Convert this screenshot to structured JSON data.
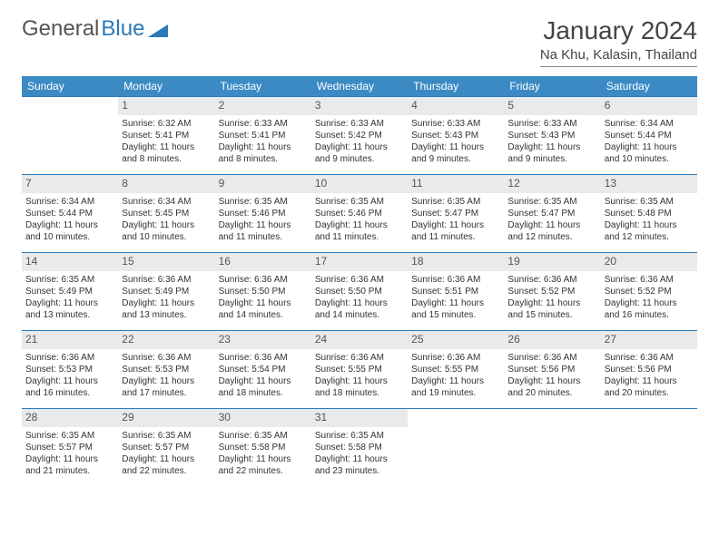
{
  "logo": {
    "text1": "General",
    "text2": "Blue"
  },
  "title": "January 2024",
  "location": "Na Khu, Kalasin, Thailand",
  "colors": {
    "header_bg": "#3b8ac4",
    "header_text": "#ffffff",
    "daynum_bg": "#e8eaec",
    "border": "#2a7ab9",
    "body_text": "#333333"
  },
  "daysOfWeek": [
    "Sunday",
    "Monday",
    "Tuesday",
    "Wednesday",
    "Thursday",
    "Friday",
    "Saturday"
  ],
  "leadingBlanks": 1,
  "days": [
    {
      "n": 1,
      "sunrise": "6:32 AM",
      "sunset": "5:41 PM",
      "daylight": "11 hours and 8 minutes."
    },
    {
      "n": 2,
      "sunrise": "6:33 AM",
      "sunset": "5:41 PM",
      "daylight": "11 hours and 8 minutes."
    },
    {
      "n": 3,
      "sunrise": "6:33 AM",
      "sunset": "5:42 PM",
      "daylight": "11 hours and 9 minutes."
    },
    {
      "n": 4,
      "sunrise": "6:33 AM",
      "sunset": "5:43 PM",
      "daylight": "11 hours and 9 minutes."
    },
    {
      "n": 5,
      "sunrise": "6:33 AM",
      "sunset": "5:43 PM",
      "daylight": "11 hours and 9 minutes."
    },
    {
      "n": 6,
      "sunrise": "6:34 AM",
      "sunset": "5:44 PM",
      "daylight": "11 hours and 10 minutes."
    },
    {
      "n": 7,
      "sunrise": "6:34 AM",
      "sunset": "5:44 PM",
      "daylight": "11 hours and 10 minutes."
    },
    {
      "n": 8,
      "sunrise": "6:34 AM",
      "sunset": "5:45 PM",
      "daylight": "11 hours and 10 minutes."
    },
    {
      "n": 9,
      "sunrise": "6:35 AM",
      "sunset": "5:46 PM",
      "daylight": "11 hours and 11 minutes."
    },
    {
      "n": 10,
      "sunrise": "6:35 AM",
      "sunset": "5:46 PM",
      "daylight": "11 hours and 11 minutes."
    },
    {
      "n": 11,
      "sunrise": "6:35 AM",
      "sunset": "5:47 PM",
      "daylight": "11 hours and 11 minutes."
    },
    {
      "n": 12,
      "sunrise": "6:35 AM",
      "sunset": "5:47 PM",
      "daylight": "11 hours and 12 minutes."
    },
    {
      "n": 13,
      "sunrise": "6:35 AM",
      "sunset": "5:48 PM",
      "daylight": "11 hours and 12 minutes."
    },
    {
      "n": 14,
      "sunrise": "6:35 AM",
      "sunset": "5:49 PM",
      "daylight": "11 hours and 13 minutes."
    },
    {
      "n": 15,
      "sunrise": "6:36 AM",
      "sunset": "5:49 PM",
      "daylight": "11 hours and 13 minutes."
    },
    {
      "n": 16,
      "sunrise": "6:36 AM",
      "sunset": "5:50 PM",
      "daylight": "11 hours and 14 minutes."
    },
    {
      "n": 17,
      "sunrise": "6:36 AM",
      "sunset": "5:50 PM",
      "daylight": "11 hours and 14 minutes."
    },
    {
      "n": 18,
      "sunrise": "6:36 AM",
      "sunset": "5:51 PM",
      "daylight": "11 hours and 15 minutes."
    },
    {
      "n": 19,
      "sunrise": "6:36 AM",
      "sunset": "5:52 PM",
      "daylight": "11 hours and 15 minutes."
    },
    {
      "n": 20,
      "sunrise": "6:36 AM",
      "sunset": "5:52 PM",
      "daylight": "11 hours and 16 minutes."
    },
    {
      "n": 21,
      "sunrise": "6:36 AM",
      "sunset": "5:53 PM",
      "daylight": "11 hours and 16 minutes."
    },
    {
      "n": 22,
      "sunrise": "6:36 AM",
      "sunset": "5:53 PM",
      "daylight": "11 hours and 17 minutes."
    },
    {
      "n": 23,
      "sunrise": "6:36 AM",
      "sunset": "5:54 PM",
      "daylight": "11 hours and 18 minutes."
    },
    {
      "n": 24,
      "sunrise": "6:36 AM",
      "sunset": "5:55 PM",
      "daylight": "11 hours and 18 minutes."
    },
    {
      "n": 25,
      "sunrise": "6:36 AM",
      "sunset": "5:55 PM",
      "daylight": "11 hours and 19 minutes."
    },
    {
      "n": 26,
      "sunrise": "6:36 AM",
      "sunset": "5:56 PM",
      "daylight": "11 hours and 20 minutes."
    },
    {
      "n": 27,
      "sunrise": "6:36 AM",
      "sunset": "5:56 PM",
      "daylight": "11 hours and 20 minutes."
    },
    {
      "n": 28,
      "sunrise": "6:35 AM",
      "sunset": "5:57 PM",
      "daylight": "11 hours and 21 minutes."
    },
    {
      "n": 29,
      "sunrise": "6:35 AM",
      "sunset": "5:57 PM",
      "daylight": "11 hours and 22 minutes."
    },
    {
      "n": 30,
      "sunrise": "6:35 AM",
      "sunset": "5:58 PM",
      "daylight": "11 hours and 22 minutes."
    },
    {
      "n": 31,
      "sunrise": "6:35 AM",
      "sunset": "5:58 PM",
      "daylight": "11 hours and 23 minutes."
    }
  ],
  "labels": {
    "sunrise": "Sunrise:",
    "sunset": "Sunset:",
    "daylight": "Daylight:"
  }
}
